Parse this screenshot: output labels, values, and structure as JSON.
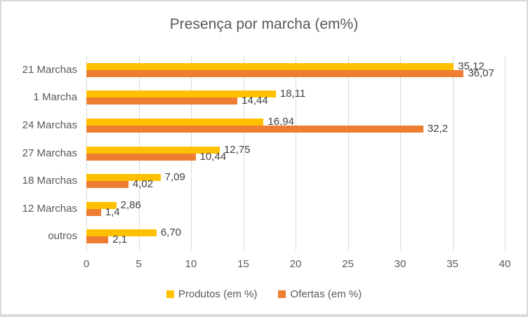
{
  "chart_data": {
    "type": "bar",
    "orientation": "horizontal",
    "title": "Presença por marcha (em%)",
    "xlabel": "",
    "ylabel": "",
    "categories": [
      "21 Marchas",
      "1 Marcha",
      "24 Marchas",
      "27 Marchas",
      "18 Marchas",
      "12 Marchas",
      "outros"
    ],
    "series": [
      {
        "name": "Produtos (em %)",
        "color": "#FFC000",
        "values": [
          35.12,
          18.11,
          16.94,
          12.75,
          7.09,
          2.86,
          6.7
        ],
        "labels": [
          "35,12",
          "18,11",
          "16,94",
          "12,75",
          "7,09",
          "2,86",
          "6,70"
        ]
      },
      {
        "name": "Ofertas (em %)",
        "color": "#ED7D31",
        "values": [
          36.07,
          14.44,
          32.2,
          10.44,
          4.02,
          1.4,
          2.1
        ],
        "labels": [
          "36,07",
          "14,44",
          "32,2",
          "10,44",
          "4,02",
          "1,4",
          "2,1"
        ]
      }
    ],
    "xlim": [
      0,
      40
    ],
    "xticks": [
      0,
      5,
      10,
      15,
      20,
      25,
      30,
      35,
      40
    ],
    "xtick_labels": [
      "0",
      "5",
      "10",
      "15",
      "20",
      "25",
      "30",
      "35",
      "40"
    ],
    "grid": true,
    "legend_position": "bottom",
    "colors": {
      "title_text": "#595959",
      "axis_text": "#595959",
      "data_label_text": "#404040",
      "gridline": "#d9d9d9",
      "border": "#d9d9d9",
      "background": "#ffffff"
    }
  }
}
